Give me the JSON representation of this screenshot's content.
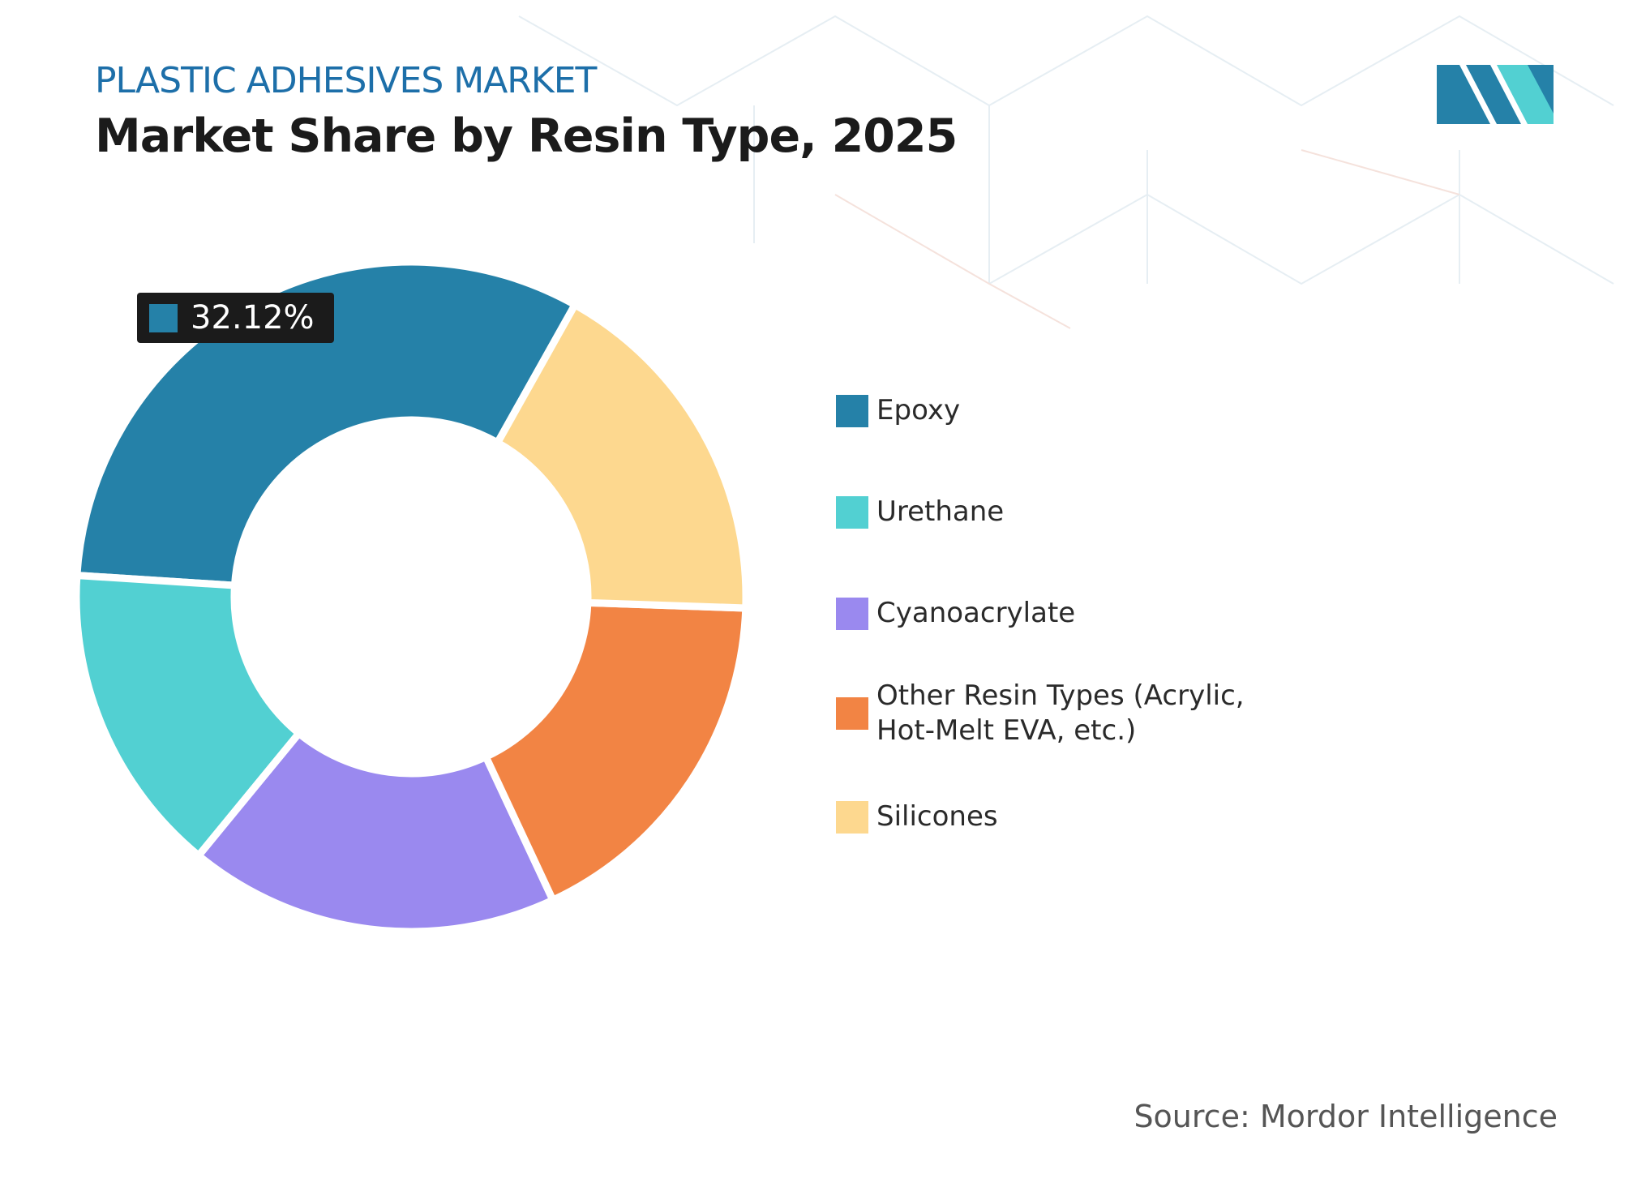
{
  "header": {
    "subtitle": "PLASTIC ADHESIVES MARKET",
    "title": "Market Share by Resin Type, 2025"
  },
  "chart_data": {
    "type": "donut",
    "categories": [
      "Epoxy",
      "Urethane",
      "Cyanoacrylate",
      "Other Resin Types (Acrylic, Hot-Melt EVA, etc.)",
      "Silicones"
    ],
    "values": [
      32.12,
      15.08,
      17.9,
      17.5,
      17.4
    ],
    "value_labels": [
      "32.12%",
      null,
      null,
      null,
      null
    ],
    "colors": [
      "#2581a8",
      "#52d0d2",
      "#9a89ef",
      "#f28444",
      "#fdd88f"
    ]
  },
  "footer": {
    "source": "Source: Mordor Intelligence"
  }
}
